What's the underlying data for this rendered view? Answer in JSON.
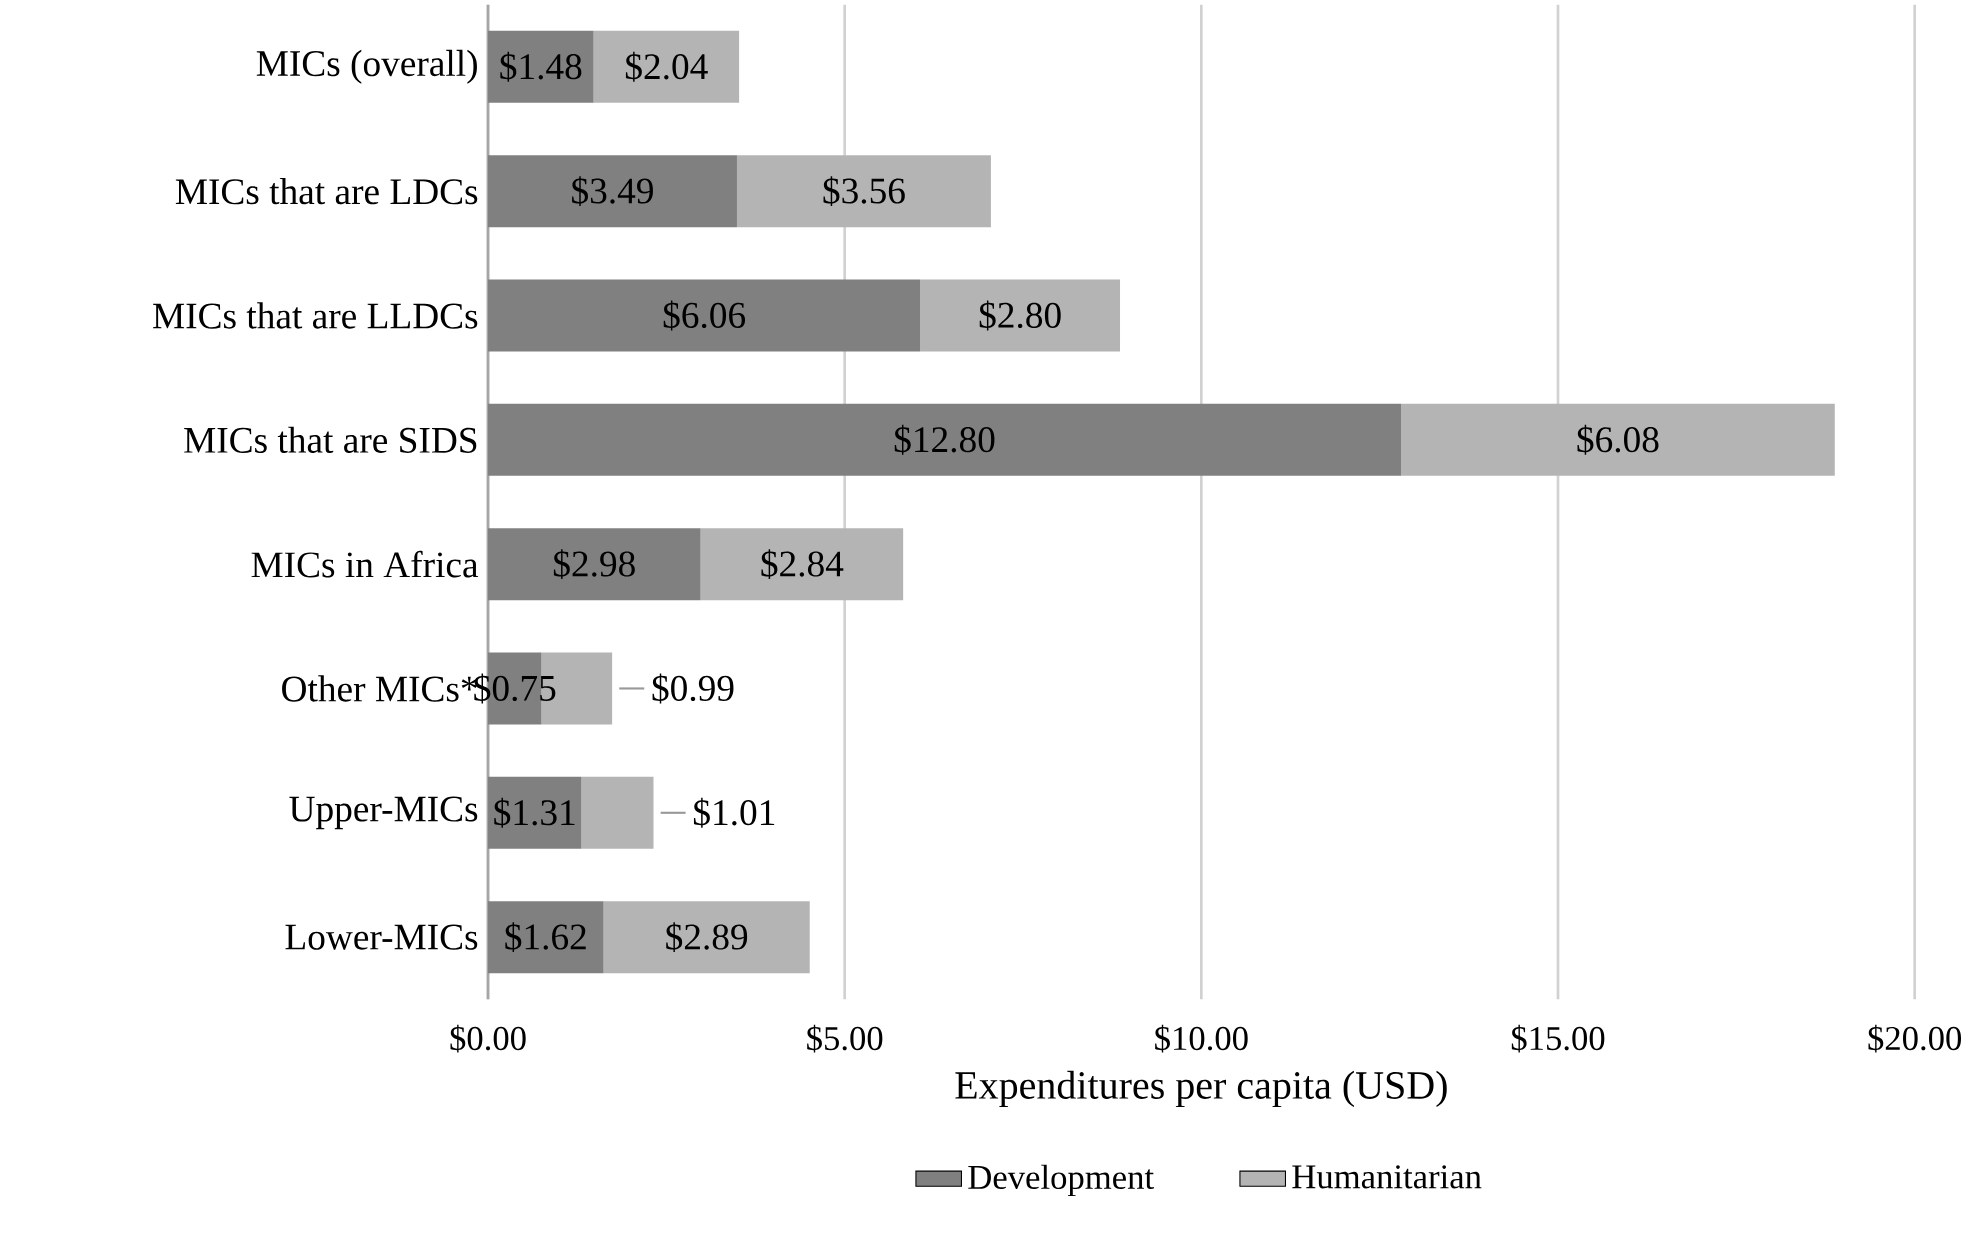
{
  "chart_data": {
    "type": "bar",
    "orientation": "horizontal",
    "stacked": true,
    "xlabel": "Expenditures per capita (USD)",
    "categories": [
      "MICs (overall)",
      "MICs that are LDCs",
      "MICs that are LLDCs",
      "MICs that are SIDS",
      "MICs in Africa",
      "Other MICs*",
      "Upper-MICs",
      "Lower-MICs"
    ],
    "series": [
      {
        "name": "Development",
        "color": "#808080",
        "values": [
          1.48,
          3.49,
          6.06,
          12.8,
          2.98,
          0.75,
          1.31,
          1.62
        ],
        "value_labels": [
          "$1.48",
          "$3.49",
          "$6.06",
          "$12.80",
          "$2.98",
          "$0.75",
          "$1.31",
          "$1.62"
        ]
      },
      {
        "name": "Humanitarian",
        "color": "#b4b4b4",
        "values": [
          2.04,
          3.56,
          2.8,
          6.08,
          2.84,
          0.99,
          1.01,
          2.89
        ],
        "value_labels": [
          "$2.04",
          "$3.56",
          "$2.80",
          "$6.08",
          "$2.84",
          "$0.99",
          "$1.01",
          "$2.89"
        ]
      }
    ],
    "xlim": [
      0,
      20
    ],
    "xticks": [
      {
        "value": 0,
        "label": "$0.00"
      },
      {
        "value": 5,
        "label": "$5.00"
      },
      {
        "value": 10,
        "label": "$10.00"
      },
      {
        "value": 15,
        "label": "$15.00"
      },
      {
        "value": 20,
        "label": "$20.00"
      }
    ],
    "grid": "x",
    "legend": "bottom"
  }
}
